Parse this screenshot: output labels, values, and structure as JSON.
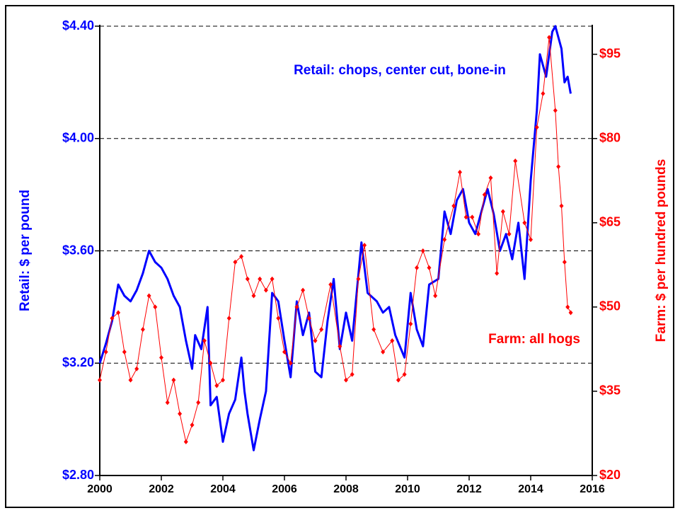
{
  "chart_data": {
    "type": "line",
    "xlim": [
      2000,
      2016
    ],
    "xticks": [
      2000,
      2002,
      2004,
      2006,
      2008,
      2010,
      2012,
      2014,
      2016
    ],
    "ylim": [
      2.8,
      4.4
    ],
    "yticks": [
      {
        "value": 2.8,
        "label": "$2.80"
      },
      {
        "value": 3.2,
        "label": "$3.20"
      },
      {
        "value": 3.6,
        "label": "$3.60"
      },
      {
        "value": 4.0,
        "label": "$4.00"
      },
      {
        "value": 4.4,
        "label": "$4.40"
      }
    ],
    "y2lim": [
      20,
      100
    ],
    "y2ticks": [
      {
        "value": 20,
        "label": "$20"
      },
      {
        "value": 35,
        "label": "$35"
      },
      {
        "value": 50,
        "label": "$50"
      },
      {
        "value": 65,
        "label": "$65"
      },
      {
        "value": 80,
        "label": "$80"
      },
      {
        "value": 95,
        "label": "$95"
      }
    ],
    "ylabel": "Retail: $ per pound",
    "y2label": "Farm: $ per hundred pounds",
    "grid": true,
    "series": [
      {
        "name": "Retail: chops, center cut, bone-in",
        "color": "#0000ff",
        "axis": "y",
        "x": [
          2000.0,
          2000.2,
          2000.4,
          2000.6,
          2000.8,
          2001.0,
          2001.2,
          2001.4,
          2001.6,
          2001.8,
          2002.0,
          2002.2,
          2002.4,
          2002.6,
          2002.8,
          2003.0,
          2003.1,
          2003.3,
          2003.5,
          2003.6,
          2003.8,
          2004.0,
          2004.2,
          2004.4,
          2004.6,
          2004.7,
          2004.8,
          2005.0,
          2005.2,
          2005.4,
          2005.6,
          2005.8,
          2006.0,
          2006.2,
          2006.4,
          2006.6,
          2006.8,
          2007.0,
          2007.2,
          2007.4,
          2007.6,
          2007.8,
          2008.0,
          2008.2,
          2008.5,
          2008.7,
          2009.0,
          2009.2,
          2009.4,
          2009.6,
          2009.9,
          2010.1,
          2010.3,
          2010.5,
          2010.7,
          2011.0,
          2011.2,
          2011.4,
          2011.6,
          2011.8,
          2012.0,
          2012.2,
          2012.4,
          2012.6,
          2012.8,
          2013.0,
          2013.2,
          2013.4,
          2013.6,
          2013.8,
          2014.0,
          2014.2,
          2014.3,
          2014.5,
          2014.7,
          2014.8,
          2015.0,
          2015.1,
          2015.2,
          2015.3
        ],
        "values": [
          3.2,
          3.27,
          3.35,
          3.48,
          3.44,
          3.42,
          3.46,
          3.52,
          3.6,
          3.56,
          3.54,
          3.5,
          3.44,
          3.4,
          3.28,
          3.18,
          3.3,
          3.25,
          3.4,
          3.05,
          3.08,
          2.92,
          3.02,
          3.07,
          3.22,
          3.1,
          3.02,
          2.89,
          3.0,
          3.1,
          3.45,
          3.42,
          3.28,
          3.15,
          3.42,
          3.3,
          3.38,
          3.17,
          3.15,
          3.35,
          3.5,
          3.25,
          3.38,
          3.28,
          3.63,
          3.45,
          3.42,
          3.38,
          3.4,
          3.3,
          3.22,
          3.45,
          3.32,
          3.26,
          3.48,
          3.5,
          3.74,
          3.66,
          3.78,
          3.82,
          3.7,
          3.66,
          3.74,
          3.82,
          3.73,
          3.6,
          3.66,
          3.57,
          3.7,
          3.5,
          3.85,
          4.1,
          4.3,
          4.22,
          4.38,
          4.4,
          4.32,
          4.2,
          4.22,
          4.16
        ]
      },
      {
        "name": "Farm: all hogs",
        "color": "#ff0000",
        "axis": "y2",
        "x": [
          2000.0,
          2000.2,
          2000.4,
          2000.6,
          2000.8,
          2001.0,
          2001.2,
          2001.4,
          2001.6,
          2001.8,
          2002.0,
          2002.2,
          2002.4,
          2002.6,
          2002.8,
          2003.0,
          2003.2,
          2003.4,
          2003.6,
          2003.8,
          2004.0,
          2004.2,
          2004.4,
          2004.6,
          2004.8,
          2005.0,
          2005.2,
          2005.4,
          2005.6,
          2005.8,
          2006.0,
          2006.2,
          2006.4,
          2006.6,
          2006.8,
          2007.0,
          2007.2,
          2007.5,
          2007.8,
          2008.0,
          2008.2,
          2008.4,
          2008.6,
          2008.9,
          2009.2,
          2009.5,
          2009.7,
          2009.9,
          2010.1,
          2010.3,
          2010.5,
          2010.7,
          2010.9,
          2011.2,
          2011.5,
          2011.7,
          2011.9,
          2012.1,
          2012.3,
          2012.5,
          2012.7,
          2012.9,
          2013.1,
          2013.3,
          2013.5,
          2013.8,
          2014.0,
          2014.2,
          2014.4,
          2014.6,
          2014.8,
          2014.9,
          2015.0,
          2015.1,
          2015.2,
          2015.3
        ],
        "values": [
          37,
          42,
          48,
          49,
          42,
          37,
          39,
          46,
          52,
          50,
          41,
          33,
          37,
          31,
          26,
          29,
          33,
          44,
          40,
          36,
          37,
          48,
          58,
          59,
          55,
          52,
          55,
          53,
          55,
          48,
          42,
          40,
          50,
          53,
          48,
          44,
          46,
          54,
          43,
          37,
          38,
          55,
          61,
          46,
          42,
          44,
          37,
          38,
          47,
          57,
          60,
          57,
          52,
          62,
          68,
          74,
          66,
          66,
          63,
          70,
          73,
          56,
          67,
          63,
          76,
          65,
          62,
          82,
          88,
          98,
          85,
          75,
          68,
          58,
          50,
          49
        ]
      }
    ]
  }
}
